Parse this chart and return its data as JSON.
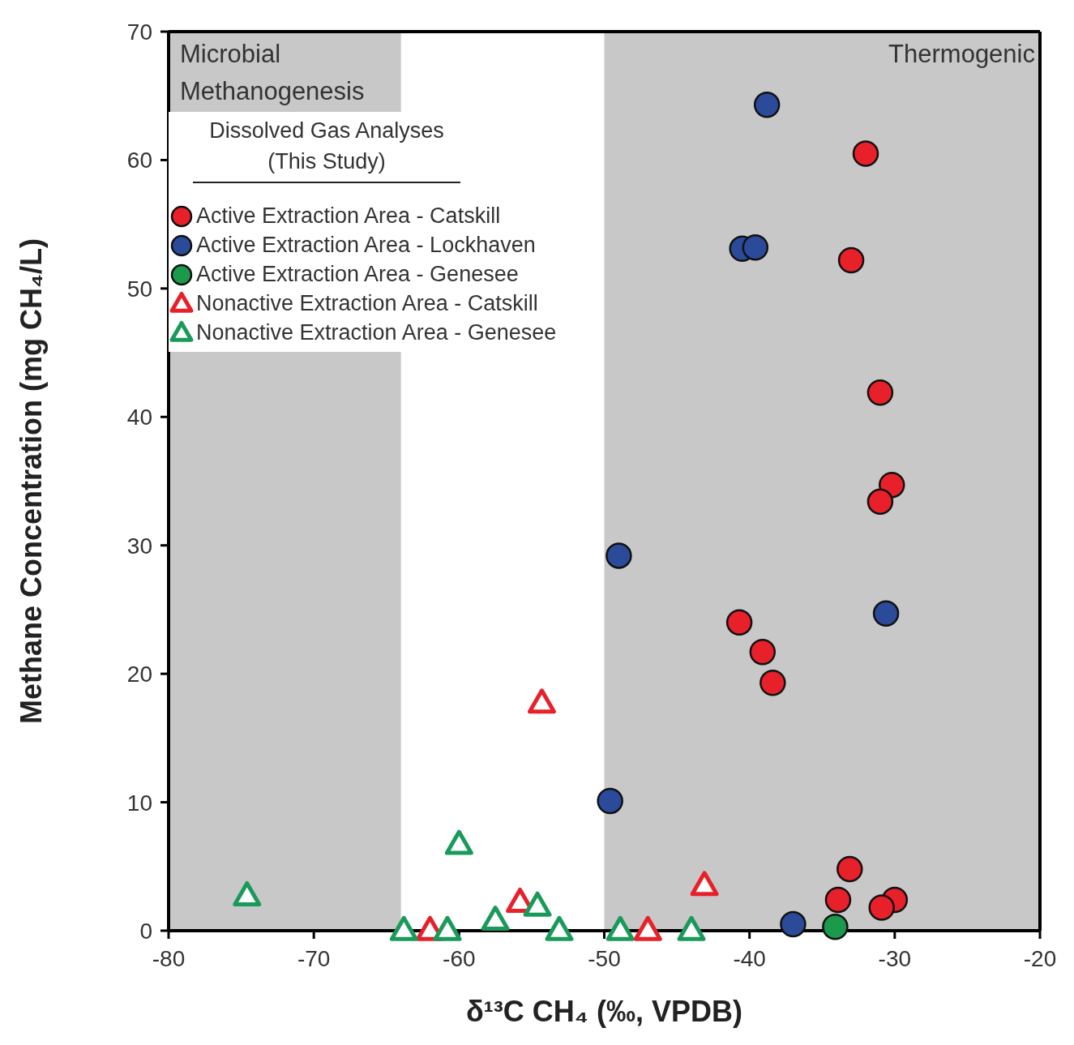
{
  "chart_data": {
    "type": "scatter",
    "xlabel": "δ¹³C CH₄ (‰, VPDB)",
    "ylabel": "Methane Concentration (mg CH₄/L)",
    "legend_title": "Dissolved Gas Analyses (This Study)",
    "legend": "top left",
    "xlim": [
      -80,
      -20
    ],
    "xticks": [
      -80,
      -70,
      -60,
      -50,
      -40,
      -30,
      -20
    ],
    "ylim": [
      0,
      70
    ],
    "yticks": [
      0,
      10,
      20,
      30,
      40,
      50,
      60,
      70
    ],
    "bands": [
      {
        "axis": "x",
        "from": -80,
        "to": -64,
        "label": "Microbial Methanogenesis",
        "color": "#c8c8c8"
      },
      {
        "axis": "x",
        "from": -50,
        "to": -20,
        "label": "Thermogenic",
        "color": "#c8c8c8"
      }
    ],
    "series": [
      {
        "name": "Active Extraction Area - Catskill",
        "color": "#e8202a",
        "marker": "circle",
        "x": [
          -32.0,
          -33.0,
          -31.0,
          -30.2,
          -31.0,
          -40.7,
          -39.1,
          -38.4,
          -33.1,
          -33.9,
          -30.0,
          -30.9
        ],
        "values": [
          60.5,
          52.2,
          41.9,
          34.7,
          33.4,
          24.0,
          21.7,
          19.3,
          4.8,
          2.4,
          2.4,
          1.8
        ]
      },
      {
        "name": "Active Extraction Area - Lockhaven",
        "color": "#2b4a9a",
        "marker": "circle",
        "x": [
          -38.8,
          -40.5,
          -39.6,
          -49.0,
          -30.6,
          -49.6,
          -37.0
        ],
        "values": [
          64.3,
          53.1,
          53.2,
          29.2,
          24.7,
          10.1,
          0.5
        ]
      },
      {
        "name": "Active Extraction Area - Genesee",
        "color": "#1a9a4a",
        "marker": "circle",
        "x": [
          -34.1
        ],
        "values": [
          0.3
        ]
      },
      {
        "name": "Nonactive Extraction Area - Catskill",
        "color": "#e8202a",
        "marker": "triangle",
        "x": [
          -54.3,
          -43.1,
          -47.0,
          -62.0,
          -55.8
        ],
        "values": [
          17.7,
          3.5,
          0,
          0,
          2.2
        ]
      },
      {
        "name": "Nonactive Extraction Area - Genesee",
        "color": "#1a9a5a",
        "marker": "triangle",
        "x": [
          -74.6,
          -60.0,
          -63.8,
          -60.8,
          -57.5,
          -54.6,
          -53.1,
          -48.9,
          -44.0
        ],
        "values": [
          2.7,
          6.7,
          0,
          0,
          0.8,
          1.9,
          0,
          0,
          0
        ]
      }
    ]
  }
}
